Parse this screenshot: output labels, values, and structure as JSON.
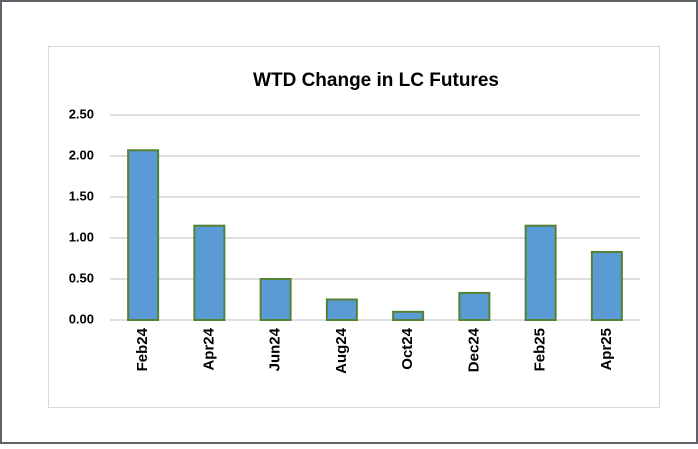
{
  "chart_data": {
    "type": "bar",
    "title": "WTD Change in LC Futures",
    "categories": [
      "Feb24",
      "Apr24",
      "Jun24",
      "Aug24",
      "Oct24",
      "Dec24",
      "Feb25",
      "Apr25"
    ],
    "values": [
      2.07,
      1.15,
      0.5,
      0.25,
      0.1,
      0.33,
      1.15,
      0.83
    ],
    "color": "#5b9bd5",
    "edge_color": "#548235",
    "ylim": [
      0,
      2.5
    ],
    "yticks": [
      {
        "value": 0,
        "label": "0.00"
      },
      {
        "value": 0.5,
        "label": "0.50"
      },
      {
        "value": 1,
        "label": "1.00"
      },
      {
        "value": 1.5,
        "label": "1.50"
      },
      {
        "value": 2,
        "label": "2.00"
      },
      {
        "value": 2.5,
        "label": "2.50"
      }
    ],
    "grid": true
  }
}
